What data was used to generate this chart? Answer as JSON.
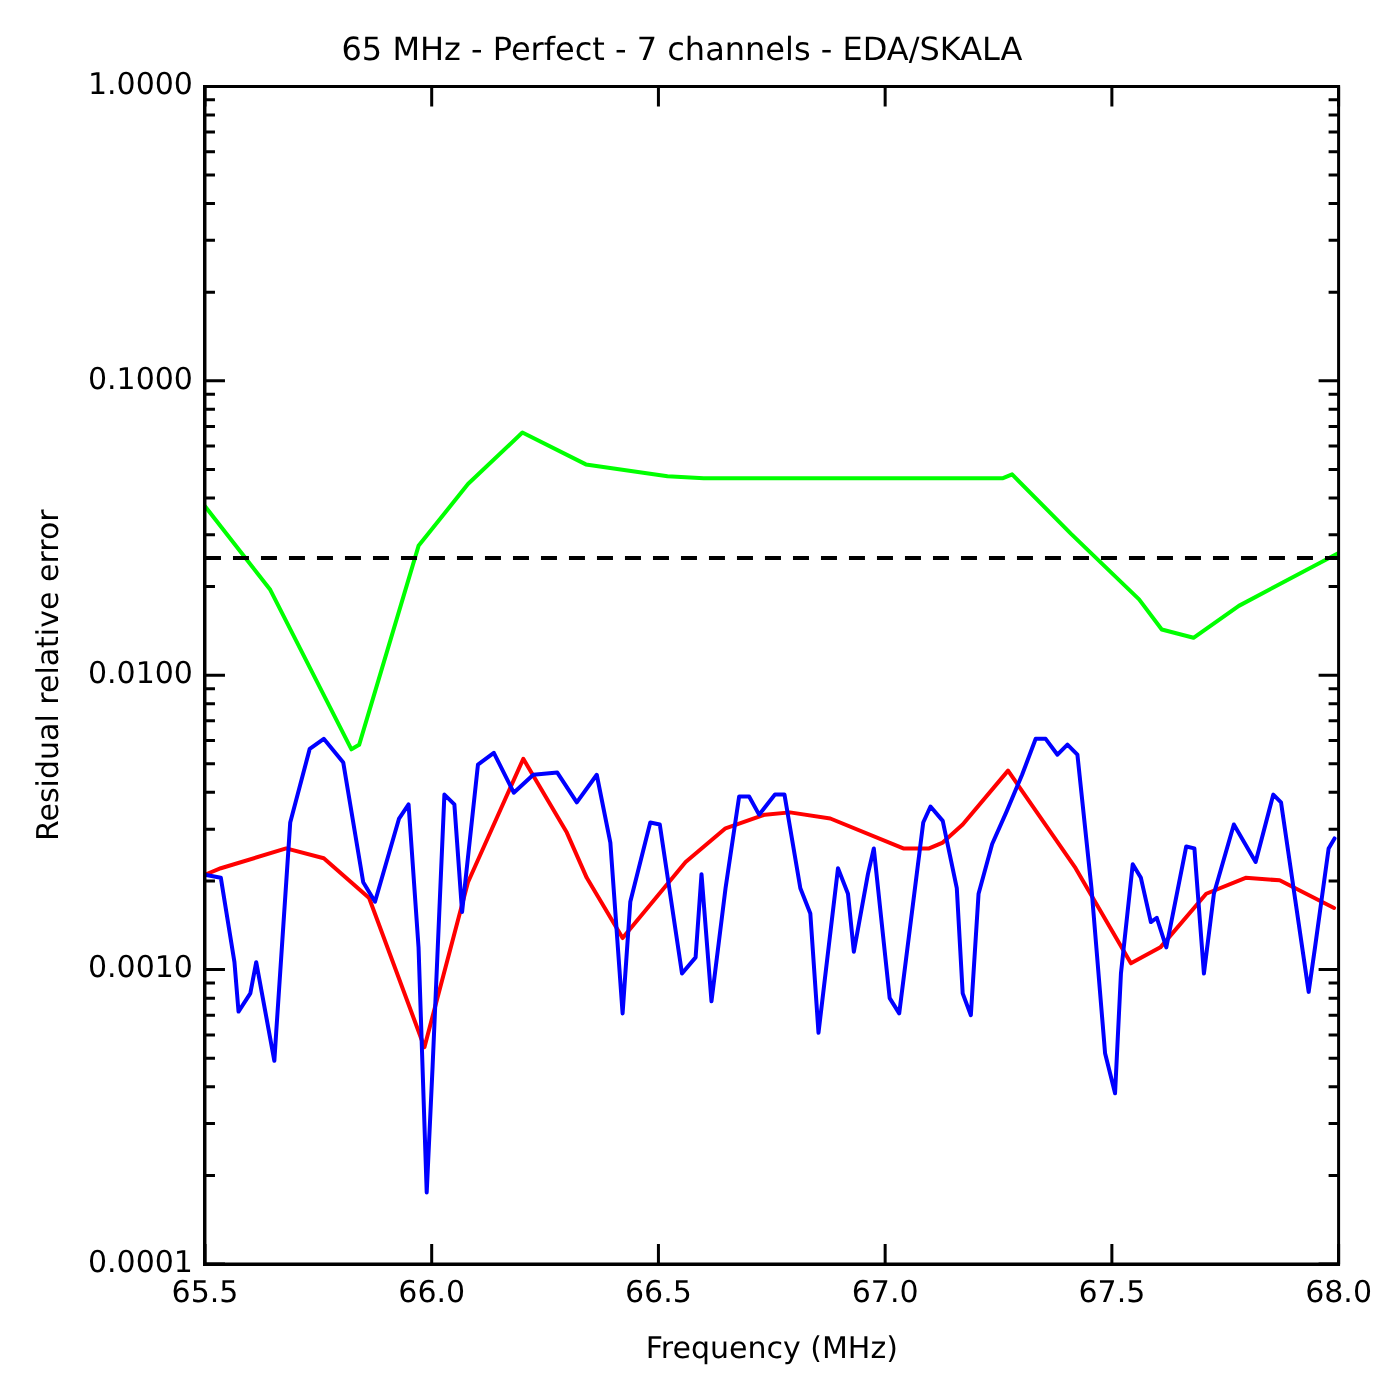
{
  "chart_data": {
    "type": "line",
    "title": "65 MHz - Perfect - 7 channels - EDA/SKALA",
    "xlabel": "Frequency (MHz)",
    "ylabel": "Residual relative error",
    "log": "y",
    "grid": false,
    "legend": false,
    "marker": "none",
    "line_style": "solid",
    "xlim": [
      65.5,
      68.0
    ],
    "xticks": [
      {
        "value": 65.5,
        "label": "65.5"
      },
      {
        "value": 66.0,
        "label": "66.0"
      },
      {
        "value": 66.5,
        "label": "66.5"
      },
      {
        "value": 67.0,
        "label": "67.0"
      },
      {
        "value": 67.5,
        "label": "67.5"
      },
      {
        "value": 68.0,
        "label": "68.0"
      }
    ],
    "ylim": [
      0.0001,
      1
    ],
    "yticks": [
      {
        "value": 0.0001,
        "label": "0.0001"
      },
      {
        "value": 0.0002,
        "label": null
      },
      {
        "value": 0.0003,
        "label": null
      },
      {
        "value": 0.0004,
        "label": null
      },
      {
        "value": 0.0005,
        "label": null
      },
      {
        "value": 0.0006,
        "label": null
      },
      {
        "value": 0.0007,
        "label": null
      },
      {
        "value": 0.0008,
        "label": null
      },
      {
        "value": 0.0009,
        "label": null
      },
      {
        "value": 0.001,
        "label": "0.0010"
      },
      {
        "value": 0.002,
        "label": null
      },
      {
        "value": 0.003,
        "label": null
      },
      {
        "value": 0.004,
        "label": null
      },
      {
        "value": 0.005,
        "label": null
      },
      {
        "value": 0.006,
        "label": null
      },
      {
        "value": 0.007,
        "label": null
      },
      {
        "value": 0.008,
        "label": null
      },
      {
        "value": 0.009,
        "label": null
      },
      {
        "value": 0.01,
        "label": "0.0100"
      },
      {
        "value": 0.02,
        "label": null
      },
      {
        "value": 0.03,
        "label": null
      },
      {
        "value": 0.04,
        "label": null
      },
      {
        "value": 0.05,
        "label": null
      },
      {
        "value": 0.06,
        "label": null
      },
      {
        "value": 0.07,
        "label": null
      },
      {
        "value": 0.08,
        "label": null
      },
      {
        "value": 0.09,
        "label": null
      },
      {
        "value": 0.1,
        "label": "0.1000"
      },
      {
        "value": 0.2,
        "label": null
      },
      {
        "value": 0.3,
        "label": null
      },
      {
        "value": 0.4,
        "label": null
      },
      {
        "value": 0.5,
        "label": null
      },
      {
        "value": 0.6,
        "label": null
      },
      {
        "value": 0.7,
        "label": null
      },
      {
        "value": 0.8,
        "label": null
      },
      {
        "value": 0.9,
        "label": null
      },
      {
        "value": 1,
        "label": "1.0000"
      }
    ],
    "ref_lines": [
      {
        "axis": "y",
        "value": 0.025,
        "color": "#000000",
        "line_style": "dashed"
      }
    ],
    "series": [
      {
        "color": "#00ff00",
        "x": [
          65.5,
          65.644,
          65.823,
          65.84,
          65.971,
          66.08,
          66.2,
          66.34,
          66.52,
          66.6,
          67.26,
          67.28,
          67.41,
          67.56,
          67.61,
          67.68,
          67.78,
          68.0
        ],
        "values": [
          0.0375,
          0.0195,
          0.0056,
          0.0058,
          0.0275,
          0.0446,
          0.0667,
          0.052,
          0.0474,
          0.0467,
          0.0467,
          0.0481,
          0.0302,
          0.0181,
          0.0143,
          0.0134,
          0.0172,
          0.026
        ]
      },
      {
        "color": "#0000ff",
        "x": [
          65.5,
          65.535,
          65.565,
          65.574,
          65.6,
          65.613,
          65.653,
          65.657,
          65.688,
          65.731,
          65.762,
          65.805,
          65.849,
          65.875,
          65.928,
          65.949,
          65.971,
          65.989,
          66.002,
          66.028,
          66.05,
          66.067,
          66.102,
          66.137,
          66.181,
          66.224,
          66.277,
          66.32,
          66.364,
          66.394,
          66.421,
          66.438,
          66.482,
          66.503,
          66.552,
          66.582,
          66.595,
          66.617,
          66.648,
          66.678,
          66.7,
          66.722,
          66.757,
          66.778,
          66.813,
          66.835,
          66.853,
          66.896,
          66.918,
          66.931,
          66.962,
          66.975,
          67.01,
          67.031,
          67.084,
          67.1,
          67.127,
          67.158,
          67.171,
          67.189,
          67.206,
          67.236,
          67.267,
          67.302,
          67.332,
          67.354,
          67.38,
          67.402,
          67.424,
          67.455,
          67.485,
          67.507,
          67.52,
          67.546,
          67.564,
          67.586,
          67.599,
          67.62,
          67.664,
          67.682,
          67.703,
          67.725,
          67.769,
          67.817,
          67.856,
          67.873,
          67.934,
          67.948,
          67.978,
          67.991
        ],
        "values": [
          0.0021,
          0.00205,
          0.00106,
          0.00072,
          0.00083,
          0.00106,
          0.00049,
          0.00061,
          0.00316,
          0.00562,
          0.00608,
          0.00505,
          0.00198,
          0.0017,
          0.00326,
          0.00364,
          0.00119,
          0.000175,
          0.00047,
          0.00393,
          0.00364,
          0.00157,
          0.00497,
          0.00545,
          0.00399,
          0.00459,
          0.00467,
          0.0037,
          0.00459,
          0.0027,
          0.00071,
          0.0017,
          0.00316,
          0.00311,
          0.00097,
          0.0011,
          0.00211,
          0.00078,
          0.00189,
          0.00387,
          0.00387,
          0.00336,
          0.00393,
          0.00393,
          0.00189,
          0.00155,
          0.00061,
          0.00221,
          0.00181,
          0.00115,
          0.00211,
          0.00258,
          0.0008,
          0.00071,
          0.00316,
          0.00358,
          0.0032,
          0.00189,
          0.00083,
          0.0007,
          0.00181,
          0.00267,
          0.00342,
          0.00459,
          0.00608,
          0.00608,
          0.00537,
          0.00581,
          0.00537,
          0.00189,
          0.00052,
          0.00038,
          0.00097,
          0.00228,
          0.00205,
          0.00145,
          0.0015,
          0.00119,
          0.00262,
          0.00258,
          0.00097,
          0.00181,
          0.00311,
          0.00232,
          0.00393,
          0.0037,
          0.00084,
          0.00119,
          0.00258,
          0.00279
        ]
      },
      {
        "color": "#ff0000",
        "x": [
          65.5,
          65.535,
          65.679,
          65.762,
          65.862,
          65.984,
          66.08,
          66.202,
          66.298,
          66.342,
          66.421,
          66.56,
          66.648,
          66.735,
          66.79,
          66.879,
          67.04,
          67.097,
          67.127,
          67.171,
          67.271,
          67.42,
          67.542,
          67.607,
          67.708,
          67.795,
          67.87,
          67.99
        ],
        "values": [
          0.0021,
          0.00221,
          0.00258,
          0.00239,
          0.00175,
          0.000545,
          0.00198,
          0.0052,
          0.00292,
          0.00205,
          0.00128,
          0.00232,
          0.00302,
          0.00336,
          0.00342,
          0.00326,
          0.00258,
          0.00258,
          0.0027,
          0.00311,
          0.00474,
          0.00221,
          0.00105,
          0.00119,
          0.00181,
          0.00205,
          0.00201,
          0.00162
        ]
      }
    ]
  }
}
